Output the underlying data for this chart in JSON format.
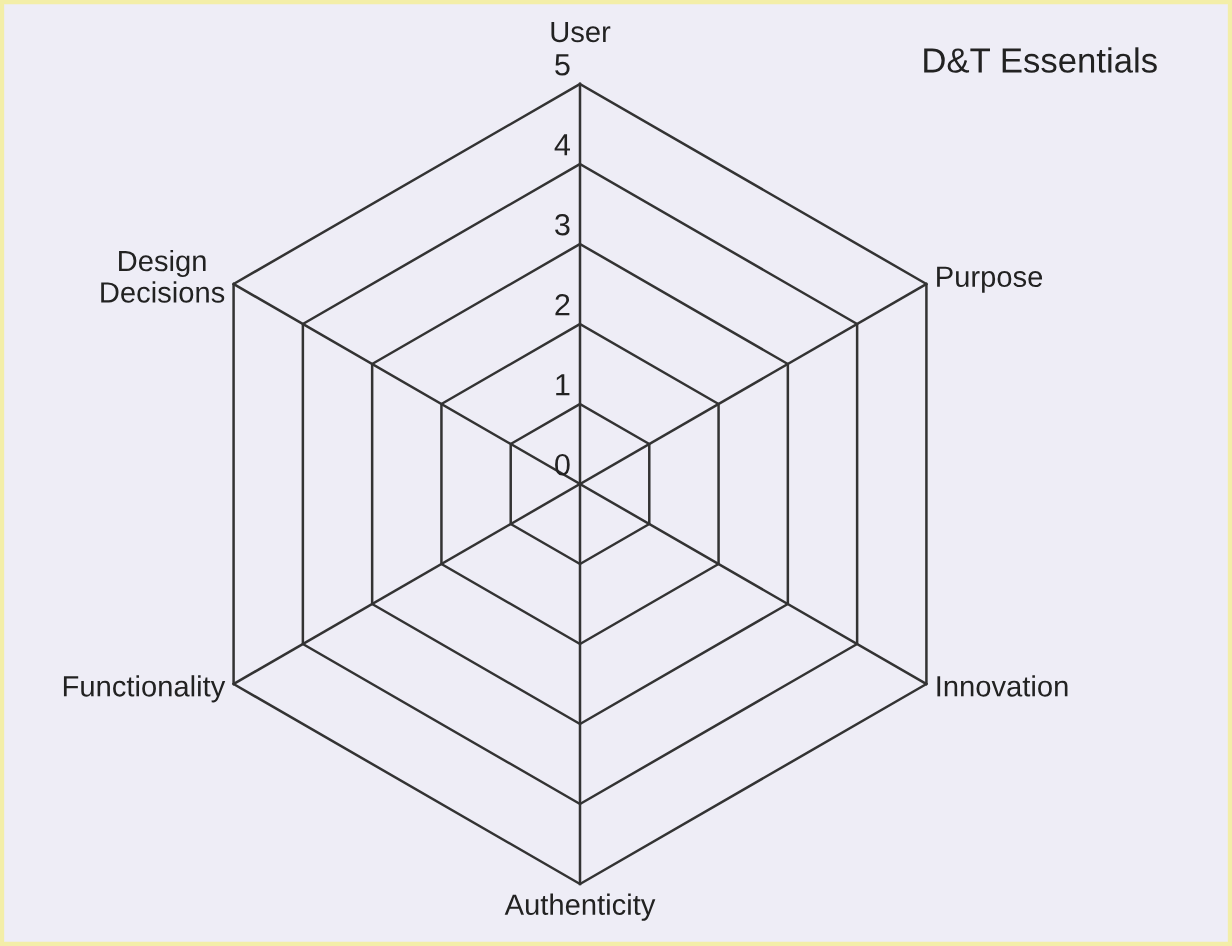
{
  "chart_data": {
    "type": "radar",
    "title": "D&T Essentials",
    "categories": [
      "User",
      "Purpose",
      "Innovation",
      "Authenticity",
      "Functionality",
      "Design\nDecisions"
    ],
    "ylim": [
      0,
      5
    ],
    "yticks": [
      0,
      1,
      2,
      3,
      4,
      5
    ],
    "grid": true
  }
}
